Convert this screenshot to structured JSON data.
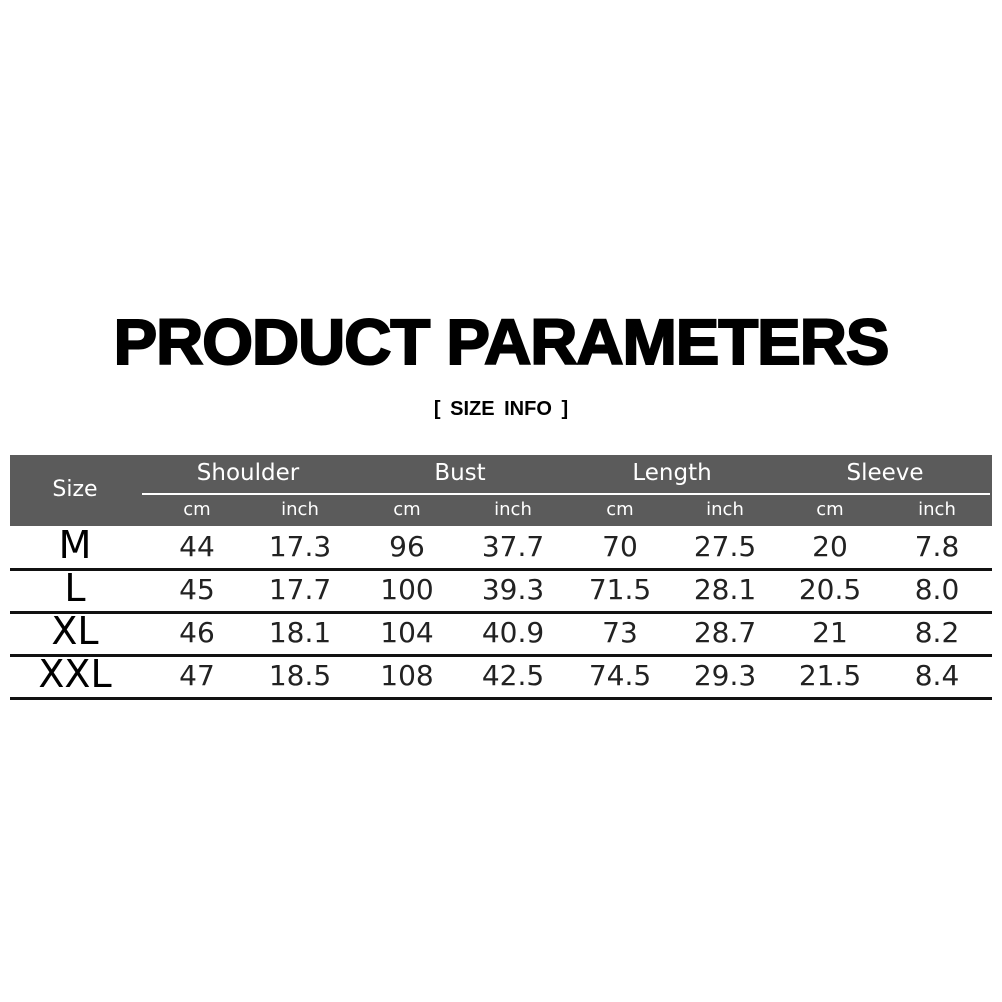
{
  "title": "PRODUCT PARAMETERS",
  "subtitle": "[ SIZE  INFO ]",
  "table": {
    "size_label": "Size",
    "groups": [
      "Shoulder",
      "Bust",
      "Length",
      "Sleeve"
    ],
    "units": [
      "cm",
      "inch",
      "cm",
      "inch",
      "cm",
      "inch",
      "cm",
      "inch"
    ],
    "rows": [
      {
        "size": "M",
        "values": [
          "44",
          "17.3",
          "96",
          "37.7",
          "70",
          "27.5",
          "20",
          "7.8"
        ]
      },
      {
        "size": "L",
        "values": [
          "45",
          "17.7",
          "100",
          "39.3",
          "71.5",
          "28.1",
          "20.5",
          "8.0"
        ]
      },
      {
        "size": "XL",
        "values": [
          "46",
          "18.1",
          "104",
          "40.9",
          "73",
          "28.7",
          "21",
          "8.2"
        ]
      },
      {
        "size": "XXL",
        "values": [
          "47",
          "18.5",
          "108",
          "42.5",
          "74.5",
          "29.3",
          "21.5",
          "8.4"
        ]
      }
    ]
  },
  "colors": {
    "header_bg": "#5b5b5b",
    "header_text": "#ffffff"
  }
}
